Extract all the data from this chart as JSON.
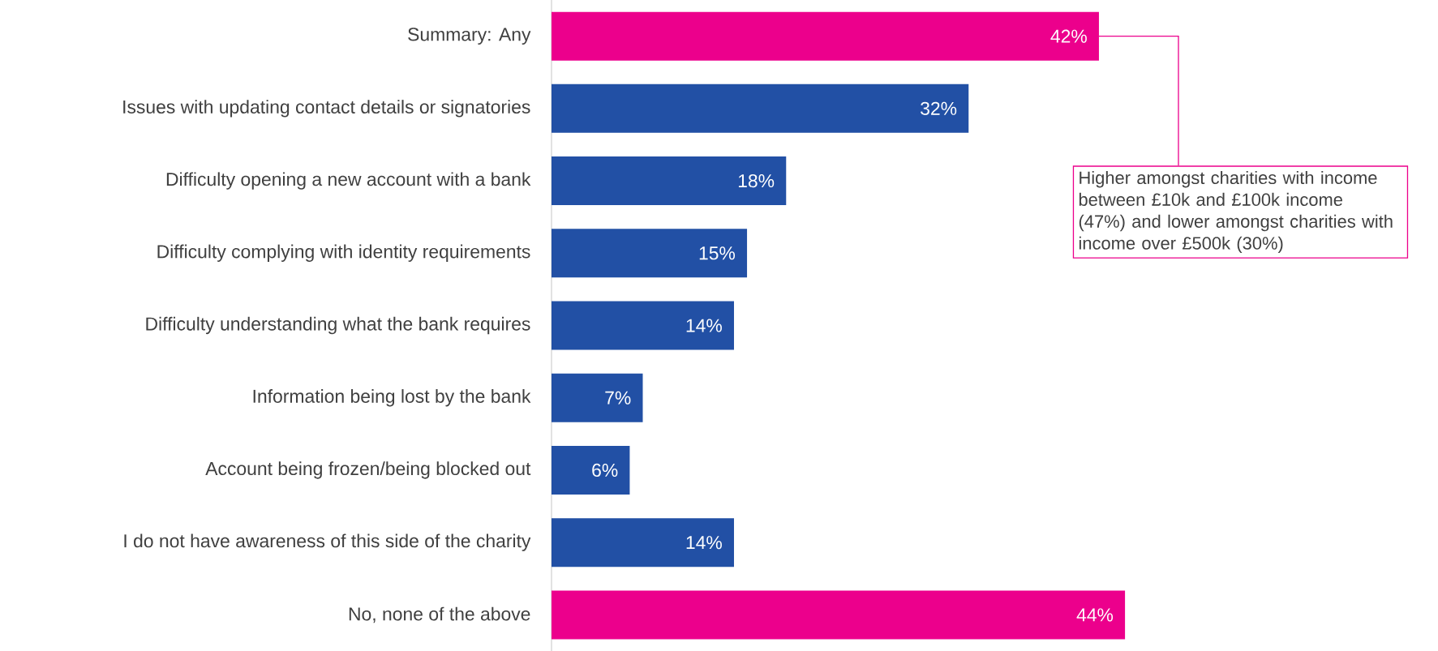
{
  "chart_data": {
    "type": "bar",
    "orientation": "horizontal",
    "tick_labels": "y",
    "categories": [
      "Summary: Any",
      "Issues with updating contact details or signatories",
      "Difficulty opening a new account with a bank",
      "Difficulty complying with identity requirements",
      "Difficulty understanding what the bank requires",
      "Information being lost by the bank",
      "Account being frozen/being blocked out",
      "I do not have awareness of this side of the charity",
      "No, none of the above"
    ],
    "values": [
      42,
      32,
      18,
      15,
      14,
      7,
      6,
      14,
      44
    ],
    "value_labels": [
      "42%",
      "32%",
      "18%",
      "15%",
      "14%",
      "7%",
      "6%",
      "14%",
      "44%"
    ],
    "colors": [
      "#ec008c",
      "#2250a5",
      "#2250a5",
      "#2250a5",
      "#2250a5",
      "#2250a5",
      "#2250a5",
      "#2250a5",
      "#ec008c"
    ],
    "annotations": [
      {
        "text": "Higher amongst charities with income between £10k and £100k income (47%) and lower amongst charities with income over £500k (30%)",
        "x": 42,
        "y": "Summary: Any"
      }
    ]
  }
}
